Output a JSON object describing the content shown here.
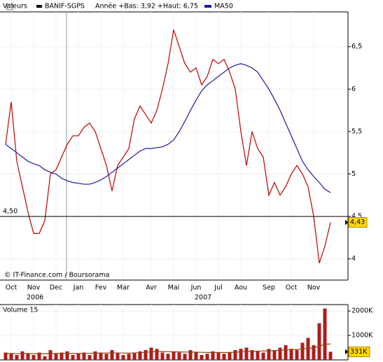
{
  "chart_data": [
    {
      "type": "line",
      "legend_label": "Valeurs",
      "subtitle": "Année +Bas: 3,92 +Haut: 6,75",
      "credit": "© IT-Finance.com / Boursorama",
      "year_labels": [
        "2006",
        "2007"
      ],
      "categories": [
        null,
        "Oct",
        null,
        null,
        null,
        "Nov",
        null,
        null,
        null,
        "Dec",
        null,
        null,
        null,
        "Jan",
        null,
        null,
        null,
        "Fev",
        null,
        null,
        null,
        "Mar",
        null,
        null,
        null,
        null,
        "Avr",
        null,
        null,
        null,
        "Mai",
        null,
        null,
        null,
        "Jun",
        null,
        null,
        null,
        "Jul",
        null,
        null,
        null,
        "Aou",
        null,
        null,
        null,
        null,
        "Sep",
        null,
        null,
        null,
        "Oct",
        null,
        null,
        null,
        "Nov",
        null,
        null,
        null
      ],
      "series": [
        {
          "name": "BANIF-SGPS",
          "color": "#c00000",
          "values": [
            5.35,
            5.85,
            5.15,
            4.85,
            4.55,
            4.3,
            4.3,
            4.45,
            5.0,
            5.05,
            5.2,
            5.35,
            5.45,
            5.45,
            5.55,
            5.6,
            5.5,
            5.3,
            5.1,
            4.8,
            5.1,
            5.2,
            5.3,
            5.65,
            5.8,
            5.7,
            5.6,
            5.75,
            6.0,
            6.3,
            6.7,
            6.5,
            6.3,
            6.2,
            6.25,
            6.05,
            6.15,
            6.35,
            6.3,
            6.35,
            6.2,
            6.0,
            5.5,
            5.1,
            5.5,
            5.3,
            5.2,
            4.75,
            4.9,
            4.75,
            4.85,
            5.0,
            5.1,
            5.0,
            4.85,
            4.5,
            3.95,
            4.15,
            4.43
          ]
        },
        {
          "name": "MA50",
          "color": "#1a1aa6",
          "values": [
            5.35,
            5.3,
            5.25,
            5.2,
            5.15,
            5.12,
            5.1,
            5.05,
            5.02,
            5.0,
            4.95,
            4.92,
            4.9,
            4.89,
            4.88,
            4.88,
            4.9,
            4.93,
            4.97,
            5.02,
            5.07,
            5.12,
            5.17,
            5.22,
            5.27,
            5.3,
            5.3,
            5.31,
            5.32,
            5.35,
            5.4,
            5.5,
            5.62,
            5.75,
            5.87,
            5.98,
            6.05,
            6.1,
            6.15,
            6.2,
            6.25,
            6.28,
            6.3,
            6.28,
            6.25,
            6.2,
            6.1,
            6.0,
            5.88,
            5.75,
            5.6,
            5.45,
            5.3,
            5.15,
            5.05,
            4.97,
            4.9,
            4.82,
            4.78
          ]
        }
      ],
      "ylim": [
        3.75,
        6.91
      ],
      "yticks": [
        4,
        {
          "value": 4.5,
          "label": "4,5"
        },
        5,
        {
          "value": 5.5,
          "label": "5,5"
        },
        6,
        {
          "value": 6.5,
          "label": "6,5"
        }
      ],
      "reference_line": {
        "value": 4.5,
        "label": "4,50"
      },
      "last_value": {
        "value": 4.43,
        "label": "4,43"
      },
      "grid": true
    },
    {
      "type": "bar",
      "title": "Volume 15",
      "series": [
        {
          "type": "bar",
          "color": "#b01c1c",
          "values": [
            300,
            250,
            200,
            350,
            250,
            200,
            300,
            150,
            400,
            250,
            300,
            350,
            200,
            250,
            300,
            200,
            350,
            300,
            250,
            400,
            300,
            200,
            250,
            300,
            350,
            400,
            500,
            450,
            300,
            250,
            350,
            300,
            250,
            400,
            300,
            200,
            250,
            350,
            300,
            250,
            300,
            400,
            450,
            500,
            400,
            350,
            300,
            450,
            400,
            500,
            600,
            450,
            400,
            700,
            900,
            600,
            1500,
            2100,
            331
          ]
        },
        {
          "type": "line",
          "color": "#8b4513",
          "values": [
            260,
            260,
            255,
            255,
            260,
            255,
            250,
            250,
            260,
            265,
            270,
            270,
            265,
            265,
            270,
            270,
            275,
            280,
            280,
            285,
            285,
            280,
            280,
            285,
            295,
            310,
            330,
            340,
            340,
            335,
            330,
            325,
            320,
            320,
            315,
            310,
            305,
            305,
            305,
            300,
            305,
            315,
            330,
            345,
            355,
            360,
            365,
            370,
            380,
            395,
            410,
            420,
            425,
            445,
            475,
            490,
            560,
            640,
            650
          ]
        }
      ],
      "ylim": [
        0,
        2260
      ],
      "yticks": [
        {
          "value": 1000,
          "label": "1000K"
        },
        {
          "value": 2000,
          "label": "2000K"
        }
      ],
      "last_value": {
        "value": 331,
        "label": "331K"
      },
      "grid": true
    }
  ]
}
